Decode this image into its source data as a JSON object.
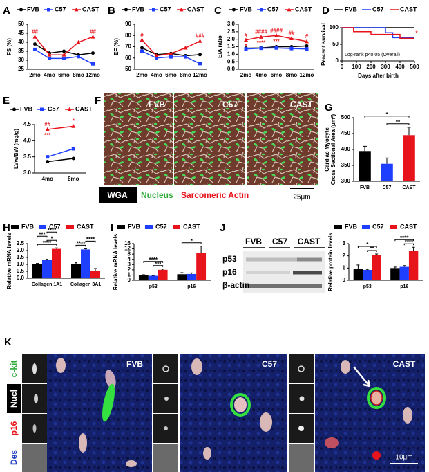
{
  "chart_data": [
    {
      "type": "line",
      "panel": "A",
      "ylabel": "FS (%)",
      "categories": [
        "2mo",
        "4mo",
        "6mo",
        "8mo",
        "12mo"
      ],
      "series": [
        {
          "name": "FVB",
          "color": "#000000",
          "marker": "circle",
          "values": [
            39,
            34,
            35,
            33,
            34
          ]
        },
        {
          "name": "C57",
          "color": "#1f3fff",
          "marker": "square",
          "values": [
            36,
            31,
            31,
            32,
            28
          ]
        },
        {
          "name": "CAST",
          "color": "#e8141c",
          "marker": "triangle",
          "values": [
            43,
            33,
            33,
            40,
            43
          ]
        }
      ],
      "ylim": [
        25,
        50
      ],
      "yticks": [
        25,
        30,
        35,
        40,
        45,
        50
      ],
      "annotations": [
        {
          "text": "##",
          "at": "2mo",
          "series": "CAST"
        },
        {
          "text": "##",
          "at": "12mo",
          "series": "CAST"
        }
      ]
    },
    {
      "type": "line",
      "panel": "B",
      "ylabel": "EF (%)",
      "categories": [
        "2mo",
        "4mo",
        "6mo",
        "8mo",
        "12mo"
      ],
      "series": [
        {
          "name": "FVB",
          "color": "#000000",
          "marker": "circle",
          "values": [
            69,
            63,
            64,
            62,
            63
          ]
        },
        {
          "name": "C57",
          "color": "#1f3fff",
          "marker": "square",
          "values": [
            66,
            60,
            61,
            61,
            55
          ]
        },
        {
          "name": "CAST",
          "color": "#e8141c",
          "marker": "triangle",
          "values": [
            76,
            62,
            64,
            69,
            75
          ]
        }
      ],
      "ylim": [
        50,
        90
      ],
      "yticks": [
        50,
        60,
        70,
        80,
        90
      ],
      "annotations": [
        {
          "text": "#",
          "at": "2mo",
          "series": "CAST"
        },
        {
          "text": "###",
          "at": "12mo",
          "series": "CAST"
        }
      ]
    },
    {
      "type": "line",
      "panel": "C",
      "ylabel": "E/A ratio",
      "categories": [
        "2mo",
        "4mo",
        "6mo",
        "8mo",
        "12mo"
      ],
      "series": [
        {
          "name": "FVB",
          "color": "#000000",
          "marker": "circle",
          "values": [
            1.4,
            1.42,
            1.5,
            1.5,
            1.55
          ]
        },
        {
          "name": "C57",
          "color": "#1f3fff",
          "marker": "square",
          "values": [
            1.35,
            1.4,
            1.42,
            1.38,
            1.35
          ]
        },
        {
          "name": "CAST",
          "color": "#e8141c",
          "marker": "triangle",
          "values": [
            1.95,
            2.15,
            2.25,
            2.05,
            1.85
          ]
        }
      ],
      "ylim": [
        0,
        3
      ],
      "yticks": [
        {
          "value": 0,
          "label": "0.0"
        },
        0.5,
        {
          "value": 1,
          "label": "1.0"
        },
        1.5,
        {
          "value": 2,
          "label": "2.0"
        },
        2.5,
        {
          "value": 3,
          "label": "3.0"
        }
      ],
      "annotations": [
        {
          "text": "#",
          "at": "2mo",
          "series": "CAST"
        },
        {
          "text": "####",
          "at": "4mo",
          "series": "CAST"
        },
        {
          "text": "####",
          "at": "6mo",
          "series": "CAST"
        },
        {
          "text": "##",
          "at": "8mo",
          "series": "CAST"
        },
        {
          "text": "#",
          "at": "12mo",
          "series": "CAST"
        },
        {
          "text": "*",
          "at": "2mo",
          "series": "CAST",
          "side": "below"
        },
        {
          "text": "****",
          "at": "4mo",
          "series": "CAST",
          "side": "below"
        },
        {
          "text": "***",
          "at": "6mo",
          "series": "CAST",
          "side": "below"
        }
      ]
    },
    {
      "type": "line",
      "panel": "D",
      "ylabel": "Percent survival",
      "xlabel": "Days after birth",
      "note": "Log-rank p<0.05 (Overall)",
      "series": [
        {
          "name": "FVB",
          "color": "#000000",
          "x": [
            0,
            500
          ],
          "values": [
            100,
            100
          ]
        },
        {
          "name": "C57",
          "color": "#1f3fff",
          "x": [
            0,
            300,
            300,
            350,
            350,
            500
          ],
          "values": [
            100,
            100,
            85,
            85,
            70,
            70
          ]
        },
        {
          "name": "CAST",
          "color": "#e8141c",
          "x": [
            0,
            80,
            80,
            200,
            200,
            400,
            400,
            500
          ],
          "values": [
            100,
            100,
            88,
            88,
            80,
            80,
            68,
            68
          ]
        }
      ],
      "xlim": [
        0,
        500
      ],
      "xticks": [
        0,
        100,
        200,
        300,
        400,
        500
      ],
      "ylim": [
        0,
        100
      ],
      "yticks": [
        0,
        50,
        100
      ],
      "annotations": [
        {
          "text": "*",
          "at": 500,
          "series": "CAST"
        }
      ]
    },
    {
      "type": "line",
      "panel": "E",
      "ylabel": "LVw/BW (mg/g)",
      "categories": [
        "4mo",
        "8mo"
      ],
      "series": [
        {
          "name": "FVB",
          "color": "#000000",
          "marker": "circle",
          "values": [
            3.35,
            3.45
          ]
        },
        {
          "name": "C57",
          "color": "#1f3fff",
          "marker": "square",
          "values": [
            3.5,
            3.75
          ]
        },
        {
          "name": "CAST",
          "color": "#e8141c",
          "marker": "triangle",
          "values": [
            4.35,
            4.45
          ]
        }
      ],
      "ylim": [
        3,
        4.5
      ],
      "yticks": [
        {
          "value": 3,
          "label": "3.0"
        },
        3.5,
        {
          "value": 4,
          "label": "4.0"
        },
        4.5
      ],
      "annotations": [
        {
          "text": "##",
          "at": "4mo",
          "series": "CAST"
        },
        {
          "text": "***",
          "at": "4mo",
          "series": "CAST",
          "side": "below"
        },
        {
          "text": "*",
          "at": "8mo",
          "series": "CAST"
        }
      ]
    },
    {
      "type": "bar",
      "panel": "G",
      "ylabel": [
        "Cardiac Myocyte",
        "Cross Sectional Area (μm²)"
      ],
      "categories": [
        "FVB",
        "C57",
        "CAST"
      ],
      "values": [
        395,
        355,
        445
      ],
      "errors": [
        15,
        18,
        25
      ],
      "colors": [
        "#000000",
        "#1f3fff",
        "#e8141c"
      ],
      "ylim": [
        300,
        500
      ],
      "yticks": [
        300,
        350,
        400,
        450,
        500
      ],
      "brackets": [
        {
          "text": "**",
          "between": [
            "C57",
            "CAST"
          ]
        },
        {
          "text": "*",
          "between": [
            "FVB",
            "CAST"
          ]
        }
      ]
    },
    {
      "type": "bar",
      "panel": "H",
      "ylabel": "Relative mRNA levels",
      "categories": [
        "Collagen 1A1",
        "Collagen 3A1"
      ],
      "series": [
        {
          "name": "FVB",
          "color": "#000000",
          "values": [
            1,
            1
          ],
          "errors": [
            0.07,
            0.12
          ]
        },
        {
          "name": "C57",
          "color": "#1f3fff",
          "values": [
            1.33,
            2.08
          ],
          "errors": [
            0.04,
            0.05
          ]
        },
        {
          "name": "CAST",
          "color": "#e8141c",
          "values": [
            2.12,
            0.55
          ],
          "errors": [
            0.07,
            0.15
          ]
        }
      ],
      "ylim": [
        0,
        2.5
      ],
      "yticks": [
        {
          "value": 0,
          "label": "0.0"
        },
        0.5,
        {
          "value": 1,
          "label": "1.0"
        },
        1.5,
        {
          "value": 2,
          "label": "2.0"
        },
        2.5
      ],
      "brackets": [
        {
          "text": "****",
          "at": "Collagen 1A1",
          "between": [
            "FVB",
            "CAST"
          ]
        },
        {
          "text": "*",
          "at": "Collagen 1A1",
          "between": [
            "C57",
            "CAST"
          ]
        },
        {
          "text": "***",
          "at": "Collagen 1A1",
          "between": [
            "FVB",
            "C57"
          ]
        },
        {
          "text": "****",
          "at": "Collagen 1A1",
          "between": [
            "C57",
            "CAST"
          ]
        },
        {
          "text": "****",
          "at": "Collagen 3A1",
          "between": [
            "FVB",
            "C57"
          ]
        },
        {
          "text": "****",
          "at": "Collagen 3A1",
          "between": [
            "C57",
            "CAST"
          ]
        }
      ]
    },
    {
      "type": "bar",
      "panel": "I",
      "ylabel": "Relative mRNA levels",
      "categories": [
        "p53",
        "p16"
      ],
      "broken_axis": true,
      "series": [
        {
          "name": "FVB",
          "color": "#000000",
          "values": [
            1,
            1.15
          ],
          "errors": [
            0.05,
            0.3
          ]
        },
        {
          "name": "C57",
          "color": "#1f3fff",
          "values": [
            0.85,
            1.2
          ],
          "errors": [
            0.05,
            0.2
          ]
        },
        {
          "name": "CAST",
          "color": "#e8141c",
          "values": [
            2,
            9
          ],
          "errors": [
            0.15,
            5
          ]
        }
      ],
      "ylim": [
        0,
        16
      ],
      "yticks": [
        0,
        1,
        2,
        3,
        4,
        8,
        12,
        16
      ],
      "brackets": [
        {
          "text": "***",
          "at": "p53",
          "between": [
            "C57",
            "CAST"
          ]
        },
        {
          "text": "****",
          "at": "p53",
          "between": [
            "FVB",
            "CAST"
          ]
        },
        {
          "text": "*",
          "at": "p16",
          "between": [
            "FVB",
            "CAST"
          ]
        }
      ]
    },
    {
      "type": "bar",
      "ylabel": "Relative protein levels",
      "categories": [
        "p53",
        "p16"
      ],
      "series": [
        {
          "name": "FVB",
          "color": "#000000",
          "values": [
            0.95,
            1
          ],
          "errors": [
            0.3,
            0.08
          ]
        },
        {
          "name": "C57",
          "color": "#1f3fff",
          "values": [
            0.85,
            1.1
          ],
          "errors": [
            0.05,
            0.1
          ]
        },
        {
          "name": "CAST",
          "color": "#e8141c",
          "values": [
            2.05,
            2.4
          ],
          "errors": [
            0.1,
            0.3
          ]
        }
      ],
      "ylim": [
        0,
        3
      ],
      "yticks": [
        0,
        1,
        2,
        3
      ],
      "brackets": [
        {
          "text": "**",
          "at": "p53",
          "between": [
            "C57",
            "CAST"
          ]
        },
        {
          "text": "*",
          "at": "p53",
          "between": [
            "FVB",
            "CAST"
          ]
        },
        {
          "text": "****",
          "at": "p16",
          "between": [
            "C57",
            "CAST"
          ]
        },
        {
          "text": "****",
          "at": "p16",
          "between": [
            "FVB",
            "CAST"
          ]
        }
      ]
    }
  ],
  "micrograph": {
    "panel": "F",
    "labels": [
      "FVB",
      "C57",
      "CAST"
    ],
    "stains": [
      "WGA",
      "Nucleus",
      "Sarcomeric Actin"
    ],
    "scale_bar": "25μm"
  },
  "blot": {
    "panel": "J",
    "lanes": [
      "FVB",
      "C57",
      "CAST"
    ],
    "bands": [
      "p53",
      "p16",
      "β-actin"
    ]
  },
  "confocal": {
    "panel": "K",
    "channels": [
      "c-kit",
      "Nucl",
      "p16",
      "Des"
    ],
    "labels": [
      "FVB",
      "C57",
      "CAST"
    ],
    "scale_bar": "10μm"
  }
}
